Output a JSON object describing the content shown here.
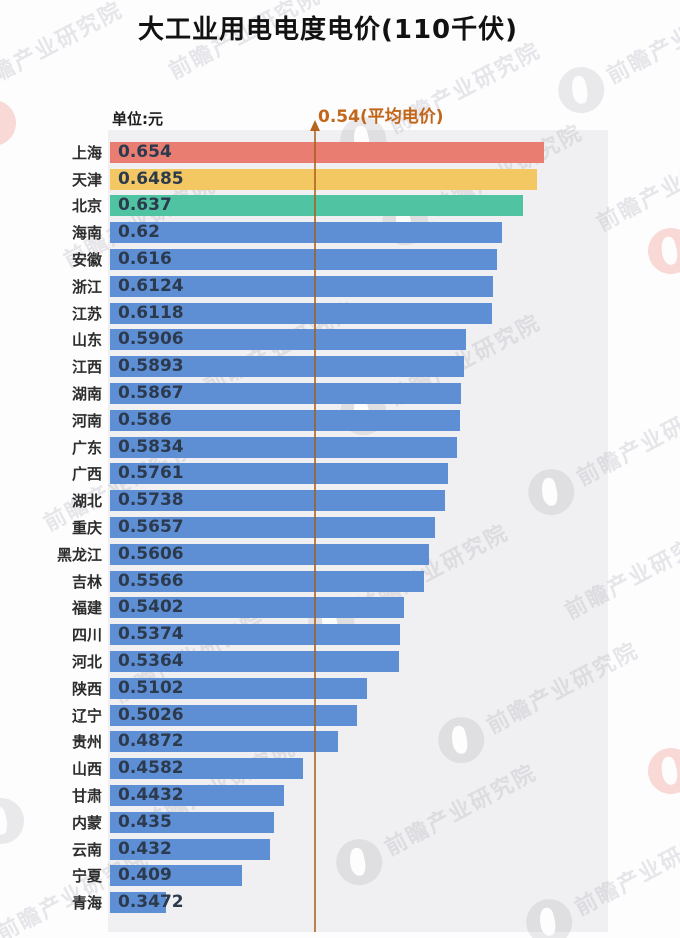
{
  "title": "大工业用电电度电价(110千伏)",
  "unit_label": "单位:元",
  "watermark": {
    "text": "前瞻产业研究院"
  },
  "colors": {
    "highlight_red": "#E97D72",
    "highlight_yellow": "#F3C862",
    "highlight_green": "#50C4A2",
    "bar_blue": "#5E8FD5",
    "average_line": "#B5651D",
    "average_label": "#C2661A",
    "panel_background": "#F0EFF1",
    "value_text": "#2C3A4E"
  },
  "chart_data": {
    "type": "bar",
    "orientation": "horizontal",
    "title": "大工业用电电度电价(110千伏)",
    "unit": "元",
    "average_line": {
      "value": 0.54,
      "label": "0.54(平均电价)"
    },
    "legend": "none",
    "grid": "off",
    "categories": [
      "上海",
      "天津",
      "北京",
      "海南",
      "安徽",
      "浙江",
      "江苏",
      "山东",
      "江西",
      "湖南",
      "河南",
      "广东",
      "广西",
      "湖北",
      "重庆",
      "黑龙江",
      "吉林",
      "福建",
      "四川",
      "河北",
      "陕西",
      "辽宁",
      "贵州",
      "山西",
      "甘肃",
      "内蒙",
      "云南",
      "宁夏",
      "青海"
    ],
    "values": [
      0.654,
      0.6485,
      0.637,
      0.62,
      0.616,
      0.6124,
      0.6118,
      0.5906,
      0.5893,
      0.5867,
      0.586,
      0.5834,
      0.5761,
      0.5738,
      0.5657,
      0.5606,
      0.5566,
      0.5402,
      0.5374,
      0.5364,
      0.5102,
      0.5026,
      0.4872,
      0.4582,
      0.4432,
      0.435,
      0.432,
      0.409,
      0.3472
    ],
    "value_labels": [
      "0.654",
      "0.6485",
      "0.637",
      "0.62",
      "0.616",
      "0.6124",
      "0.6118",
      "0.5906",
      "0.5893",
      "0.5867",
      "0.586",
      "0.5834",
      "0.5761",
      "0.5738",
      "0.5657",
      "0.5606",
      "0.5566",
      "0.5402",
      "0.5374",
      "0.5364",
      "0.5102",
      "0.5026",
      "0.4872",
      "0.4582",
      "0.4432",
      "0.435",
      "0.432",
      "0.409",
      "0.3472"
    ],
    "bar_colors": [
      "#E97D72",
      "#F3C862",
      "#50C4A2",
      "#5E8FD5",
      "#5E8FD5",
      "#5E8FD5",
      "#5E8FD5",
      "#5E8FD5",
      "#5E8FD5",
      "#5E8FD5",
      "#5E8FD5",
      "#5E8FD5",
      "#5E8FD5",
      "#5E8FD5",
      "#5E8FD5",
      "#5E8FD5",
      "#5E8FD5",
      "#5E8FD5",
      "#5E8FD5",
      "#5E8FD5",
      "#5E8FD5",
      "#5E8FD5",
      "#5E8FD5",
      "#5E8FD5",
      "#5E8FD5",
      "#5E8FD5",
      "#5E8FD5",
      "#5E8FD5",
      "#5E8FD5"
    ],
    "value_range_shown": [
      0.3472,
      0.654
    ]
  }
}
